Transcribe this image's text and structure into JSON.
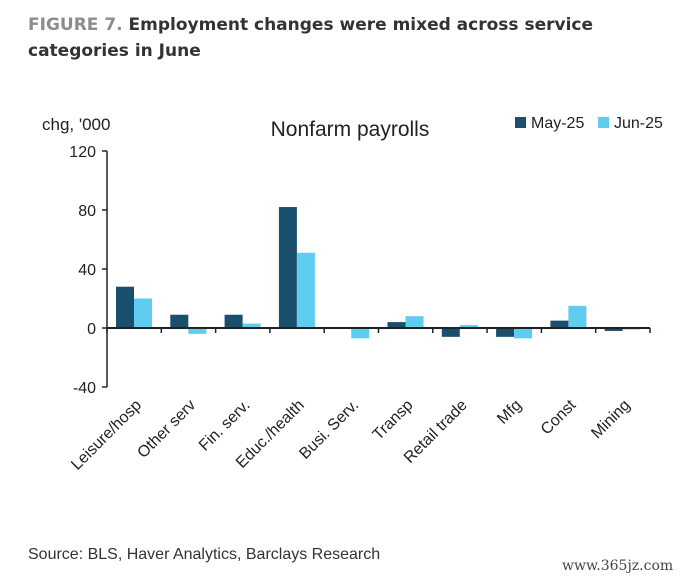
{
  "figure": {
    "label": "FIGURE 7.",
    "title": "Employment changes were mixed across service categories in June"
  },
  "source": "Source: BLS, Haver Analytics, Barclays Research",
  "watermark": "www.365jz.com",
  "colors": {
    "may": "#1b4f6e",
    "jun": "#5fcdf0",
    "axis": "#222222"
  },
  "chart_data": {
    "type": "bar",
    "title": "Nonfarm payrolls",
    "ylabel": "chg, '000",
    "xlabel": "",
    "ylim": [
      -40,
      120
    ],
    "yticks": [
      -40,
      0,
      40,
      80,
      120
    ],
    "grid": false,
    "legend_position": "top-right",
    "categories": [
      "Leisure/hosp",
      "Other serv",
      "Fin. serv.",
      "Educ./health",
      "Busi. Serv.",
      "Transp",
      "Retail trade",
      "Mfg",
      "Const",
      "Mining"
    ],
    "series": [
      {
        "name": "May-25",
        "color": "#1b4f6e",
        "values": [
          28,
          9,
          9,
          82,
          0,
          4,
          -6,
          -6,
          5,
          -2
        ]
      },
      {
        "name": "Jun-25",
        "color": "#5fcdf0",
        "values": [
          20,
          -4,
          3,
          51,
          -7,
          8,
          2,
          -7,
          15,
          -1
        ]
      }
    ]
  }
}
